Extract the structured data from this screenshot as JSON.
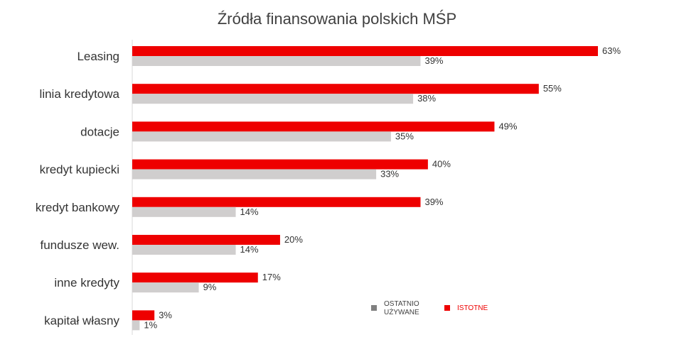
{
  "chart_data": {
    "type": "bar",
    "orientation": "horizontal",
    "title": "Źródła finansowania polskich MŚP",
    "categories": [
      "Leasing",
      "linia kredytowa",
      "dotacje",
      "kredyt kupiecki",
      "kredyt bankowy",
      "fundusze wew.",
      "inne kredyty",
      "kapitał własny"
    ],
    "series": [
      {
        "name": "ISTOTNE",
        "color": "#ee0000",
        "values": [
          63,
          55,
          49,
          40,
          39,
          20,
          17,
          3
        ]
      },
      {
        "name": "OSTATNIO UŻYWANE",
        "color": "#d0cece",
        "values": [
          39,
          38,
          35,
          33,
          14,
          14,
          9,
          1
        ]
      }
    ],
    "value_suffix": "%",
    "xlim": [
      0,
      63
    ],
    "grid": false,
    "legend_position": "bottom-right"
  },
  "legend": {
    "used_line1": "OSTATNIO",
    "used_line2": "UŻYWANE",
    "used_color": "#808080",
    "important": "ISTOTNE",
    "important_color": "#ee0000"
  }
}
